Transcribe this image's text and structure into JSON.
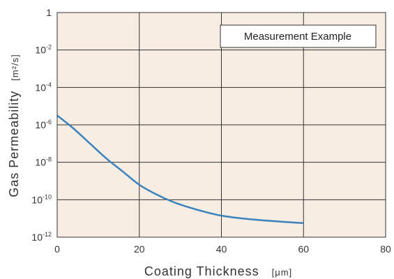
{
  "chart_data": {
    "type": "line",
    "x_axis": {
      "label": "Coating Thickness",
      "unit": "[μm]",
      "range": [
        0,
        80
      ],
      "ticks": [
        0,
        20,
        40,
        60,
        80
      ]
    },
    "y_axis": {
      "label": "Gas Permeability",
      "unit": "[m²/s]",
      "scale": "log",
      "range_exponent": [
        -12,
        0
      ],
      "ticks": [
        {
          "exp": 0,
          "base": "1",
          "sup": ""
        },
        {
          "exp": -2,
          "base": "10",
          "sup": "-2"
        },
        {
          "exp": -4,
          "base": "10",
          "sup": "-4"
        },
        {
          "exp": -6,
          "base": "10",
          "sup": "-6"
        },
        {
          "exp": -8,
          "base": "10",
          "sup": "-8"
        },
        {
          "exp": -10,
          "base": "10",
          "sup": "-10"
        },
        {
          "exp": -12,
          "base": "10",
          "sup": "-12"
        }
      ]
    },
    "annotation": "Measurement Example",
    "grid": true,
    "colors": {
      "plot_background": "#f8ede3",
      "line": "#3a82bd",
      "grid": "#333333"
    },
    "series": [
      {
        "points": [
          {
            "x": 0,
            "y_exp": -5.5
          },
          {
            "x": 4,
            "y_exp": -6.2
          },
          {
            "x": 8,
            "y_exp": -7.0
          },
          {
            "x": 12,
            "y_exp": -7.8
          },
          {
            "x": 16,
            "y_exp": -8.5
          },
          {
            "x": 20,
            "y_exp": -9.2
          },
          {
            "x": 24,
            "y_exp": -9.7
          },
          {
            "x": 28,
            "y_exp": -10.1
          },
          {
            "x": 32,
            "y_exp": -10.4
          },
          {
            "x": 36,
            "y_exp": -10.65
          },
          {
            "x": 40,
            "y_exp": -10.85
          },
          {
            "x": 45,
            "y_exp": -11.0
          },
          {
            "x": 50,
            "y_exp": -11.1
          },
          {
            "x": 55,
            "y_exp": -11.18
          },
          {
            "x": 60,
            "y_exp": -11.25
          }
        ]
      }
    ]
  }
}
